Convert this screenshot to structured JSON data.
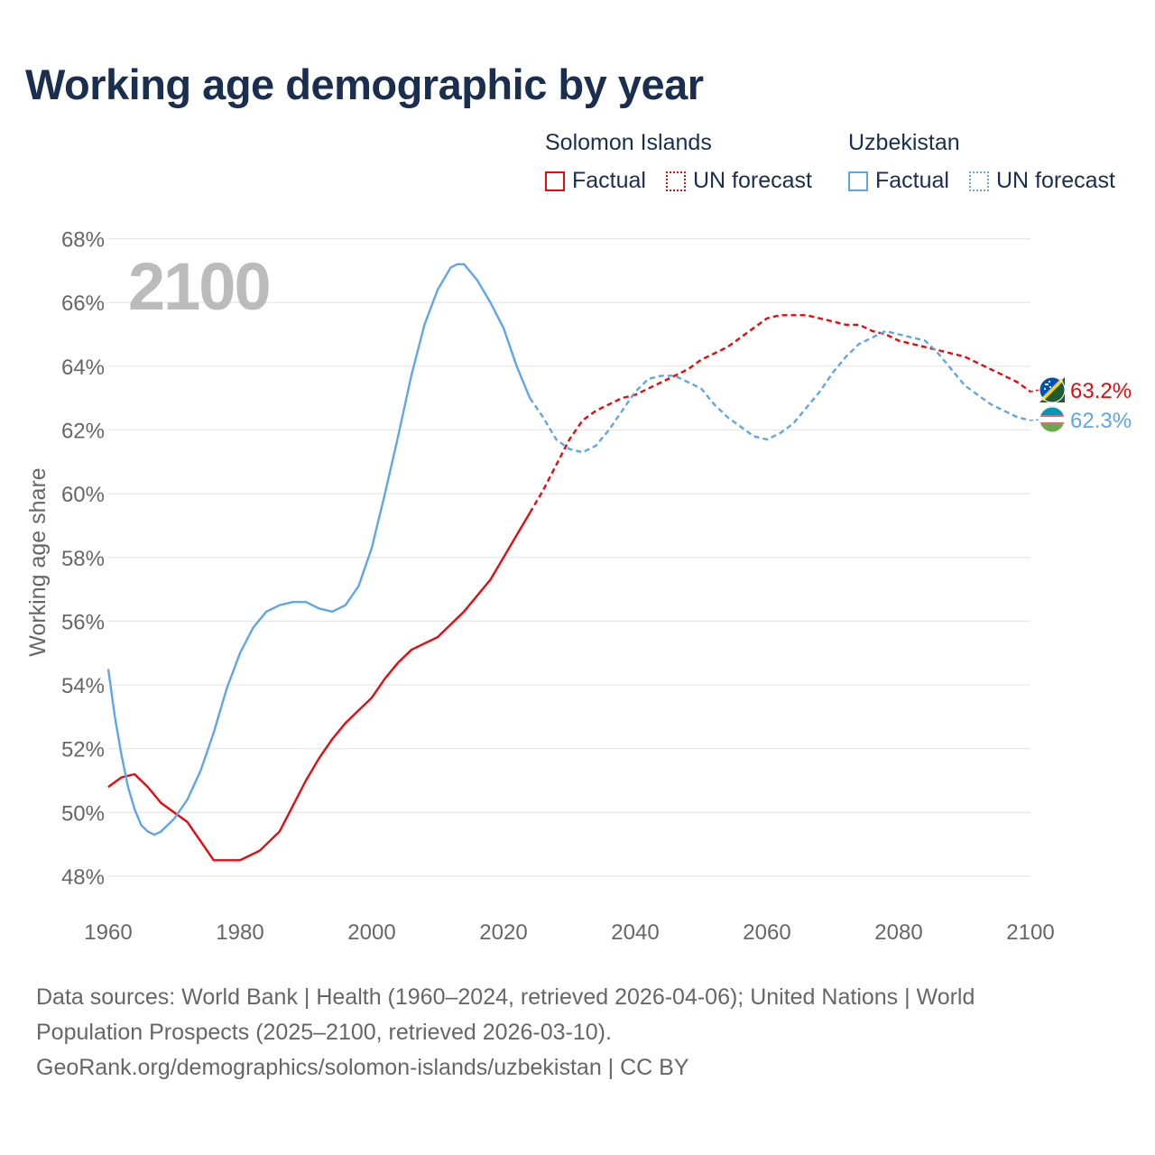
{
  "title": "Working age demographic by year",
  "year_label": "2100",
  "legend": {
    "groups": [
      {
        "name": "Solomon Islands",
        "color": "#e8090d",
        "factual_label": "Factual",
        "forecast_label": "UN forecast"
      },
      {
        "name": "Uzbekistan",
        "color": "#5da6e8",
        "factual_label": "Factual",
        "forecast_label": "UN forecast"
      }
    ]
  },
  "sources": {
    "line1": "Data sources: World Bank | Health (1960–2024, retrieved 2026-04-06); United Nations | World",
    "line2": "Population Prospects (2025–2100, retrieved 2026-03-10).",
    "line3": "GeoRank.org/demographics/solomon-islands/uzbekistan | CC BY"
  },
  "chart_data": {
    "type": "line",
    "title": "Working age demographic by year",
    "xlabel": "",
    "ylabel": "Working age share",
    "xlim": [
      1960,
      2100
    ],
    "ylim": [
      47.5,
      68
    ],
    "x_ticks": [
      1960,
      1980,
      2000,
      2020,
      2040,
      2060,
      2080,
      2100
    ],
    "x_tick_labels": [
      "1960",
      "1980",
      "2000",
      "2020",
      "2040",
      "2060",
      "2080",
      "2100"
    ],
    "y_ticks": [
      48,
      50,
      52,
      54,
      56,
      58,
      60,
      62,
      64,
      66,
      68
    ],
    "y_tick_labels": [
      "48%",
      "50%",
      "52%",
      "54%",
      "56%",
      "58%",
      "60%",
      "62%",
      "64%",
      "66%",
      "68%"
    ],
    "grid": true,
    "forecast_start_year": 2024,
    "series": [
      {
        "name": "Solomon Islands",
        "color": "#e8090d",
        "end_label": "63.2%",
        "points": [
          [
            1960,
            50.8
          ],
          [
            1962,
            51.1
          ],
          [
            1964,
            51.2
          ],
          [
            1966,
            50.8
          ],
          [
            1968,
            50.3
          ],
          [
            1970,
            50.0
          ],
          [
            1972,
            49.7
          ],
          [
            1974,
            49.1
          ],
          [
            1976,
            48.5
          ],
          [
            1978,
            48.5
          ],
          [
            1980,
            48.5
          ],
          [
            1983,
            48.8
          ],
          [
            1986,
            49.4
          ],
          [
            1988,
            50.2
          ],
          [
            1990,
            51.0
          ],
          [
            1992,
            51.7
          ],
          [
            1994,
            52.3
          ],
          [
            1996,
            52.8
          ],
          [
            1998,
            53.2
          ],
          [
            2000,
            53.6
          ],
          [
            2002,
            54.2
          ],
          [
            2004,
            54.7
          ],
          [
            2006,
            55.1
          ],
          [
            2008,
            55.3
          ],
          [
            2010,
            55.5
          ],
          [
            2012,
            55.9
          ],
          [
            2014,
            56.3
          ],
          [
            2016,
            56.8
          ],
          [
            2018,
            57.3
          ],
          [
            2020,
            58.0
          ],
          [
            2022,
            58.7
          ],
          [
            2024,
            59.4
          ],
          [
            2026,
            60.1
          ],
          [
            2028,
            60.9
          ],
          [
            2030,
            61.7
          ],
          [
            2032,
            62.3
          ],
          [
            2034,
            62.6
          ],
          [
            2036,
            62.8
          ],
          [
            2038,
            63.0
          ],
          [
            2040,
            63.1
          ],
          [
            2042,
            63.3
          ],
          [
            2044,
            63.5
          ],
          [
            2046,
            63.7
          ],
          [
            2048,
            63.9
          ],
          [
            2050,
            64.2
          ],
          [
            2052,
            64.4
          ],
          [
            2054,
            64.6
          ],
          [
            2056,
            64.9
          ],
          [
            2058,
            65.2
          ],
          [
            2060,
            65.5
          ],
          [
            2062,
            65.6
          ],
          [
            2064,
            65.6
          ],
          [
            2066,
            65.6
          ],
          [
            2068,
            65.5
          ],
          [
            2070,
            65.4
          ],
          [
            2072,
            65.3
          ],
          [
            2074,
            65.3
          ],
          [
            2076,
            65.1
          ],
          [
            2078,
            65.0
          ],
          [
            2080,
            64.8
          ],
          [
            2082,
            64.7
          ],
          [
            2084,
            64.6
          ],
          [
            2086,
            64.5
          ],
          [
            2088,
            64.4
          ],
          [
            2090,
            64.3
          ],
          [
            2092,
            64.1
          ],
          [
            2094,
            63.9
          ],
          [
            2096,
            63.7
          ],
          [
            2098,
            63.5
          ],
          [
            2100,
            63.2
          ]
        ]
      },
      {
        "name": "Uzbekistan",
        "color": "#5da6e8",
        "end_label": "62.3%",
        "points": [
          [
            1960,
            54.5
          ],
          [
            1961,
            53.0
          ],
          [
            1962,
            51.8
          ],
          [
            1963,
            50.8
          ],
          [
            1964,
            50.1
          ],
          [
            1965,
            49.6
          ],
          [
            1966,
            49.4
          ],
          [
            1967,
            49.3
          ],
          [
            1968,
            49.4
          ],
          [
            1970,
            49.8
          ],
          [
            1972,
            50.4
          ],
          [
            1974,
            51.3
          ],
          [
            1976,
            52.5
          ],
          [
            1978,
            53.9
          ],
          [
            1980,
            55.0
          ],
          [
            1982,
            55.8
          ],
          [
            1984,
            56.3
          ],
          [
            1986,
            56.5
          ],
          [
            1988,
            56.6
          ],
          [
            1990,
            56.6
          ],
          [
            1992,
            56.4
          ],
          [
            1994,
            56.3
          ],
          [
            1996,
            56.5
          ],
          [
            1998,
            57.1
          ],
          [
            2000,
            58.3
          ],
          [
            2002,
            60.0
          ],
          [
            2004,
            61.8
          ],
          [
            2006,
            63.7
          ],
          [
            2008,
            65.3
          ],
          [
            2010,
            66.4
          ],
          [
            2012,
            67.1
          ],
          [
            2013,
            67.2
          ],
          [
            2014,
            67.2
          ],
          [
            2016,
            66.7
          ],
          [
            2018,
            66.0
          ],
          [
            2020,
            65.2
          ],
          [
            2022,
            64.0
          ],
          [
            2024,
            63.0
          ],
          [
            2026,
            62.4
          ],
          [
            2028,
            61.7
          ],
          [
            2030,
            61.4
          ],
          [
            2032,
            61.3
          ],
          [
            2034,
            61.5
          ],
          [
            2036,
            62.0
          ],
          [
            2038,
            62.6
          ],
          [
            2040,
            63.2
          ],
          [
            2042,
            63.6
          ],
          [
            2044,
            63.7
          ],
          [
            2046,
            63.7
          ],
          [
            2048,
            63.5
          ],
          [
            2050,
            63.3
          ],
          [
            2052,
            62.8
          ],
          [
            2054,
            62.4
          ],
          [
            2056,
            62.1
          ],
          [
            2058,
            61.8
          ],
          [
            2060,
            61.7
          ],
          [
            2062,
            61.9
          ],
          [
            2064,
            62.2
          ],
          [
            2066,
            62.7
          ],
          [
            2068,
            63.2
          ],
          [
            2070,
            63.8
          ],
          [
            2072,
            64.3
          ],
          [
            2074,
            64.7
          ],
          [
            2076,
            64.9
          ],
          [
            2078,
            65.1
          ],
          [
            2080,
            65.0
          ],
          [
            2082,
            64.9
          ],
          [
            2084,
            64.8
          ],
          [
            2086,
            64.4
          ],
          [
            2088,
            63.9
          ],
          [
            2090,
            63.4
          ],
          [
            2092,
            63.1
          ],
          [
            2094,
            62.8
          ],
          [
            2096,
            62.6
          ],
          [
            2098,
            62.4
          ],
          [
            2100,
            62.3
          ]
        ]
      }
    ]
  }
}
